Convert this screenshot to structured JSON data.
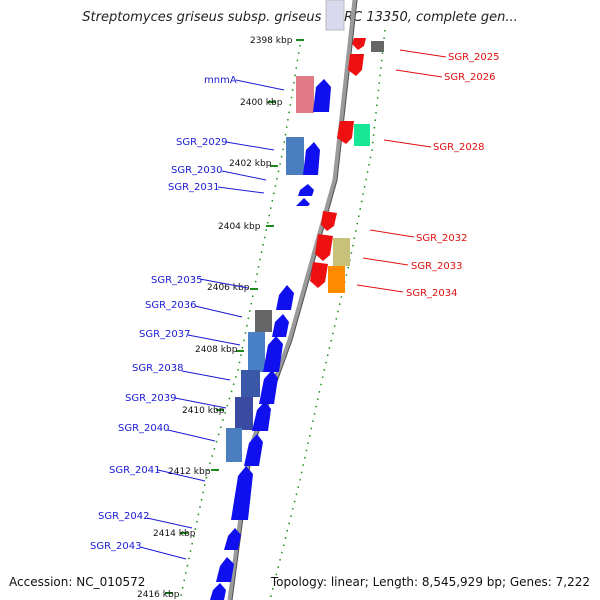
{
  "title": "Streptomyces griseus subsp. griseus NBRC 13350, complete gen...",
  "accession_text": "Accession: NC_010572",
  "topology_text": "Topology: linear; Length: 8,545,929 bp; Genes: 7,222",
  "scale": {
    "ticks": [
      {
        "label": "2398 kbp"
      },
      {
        "label": "2400 kbp"
      },
      {
        "label": "2402 kbp"
      },
      {
        "label": "2404 kbp"
      },
      {
        "label": "2406 kbp"
      },
      {
        "label": "2408 kbp"
      },
      {
        "label": "2410 kbp"
      },
      {
        "label": "2412 kbp"
      },
      {
        "label": "2414 kbp"
      },
      {
        "label": "2416 kbp"
      }
    ]
  },
  "genes": {
    "forward_labels": [
      {
        "name": "mnmA"
      },
      {
        "name": "SGR_2029"
      },
      {
        "name": "SGR_2030"
      },
      {
        "name": "SGR_2031"
      },
      {
        "name": "SGR_2035"
      },
      {
        "name": "SGR_2036"
      },
      {
        "name": "SGR_2037"
      },
      {
        "name": "SGR_2038"
      },
      {
        "name": "SGR_2039"
      },
      {
        "name": "SGR_2040"
      },
      {
        "name": "SGR_2041"
      },
      {
        "name": "SGR_2042"
      },
      {
        "name": "SGR_2043"
      }
    ],
    "reverse_labels": [
      {
        "name": "SGR_2025"
      },
      {
        "name": "SGR_2026"
      },
      {
        "name": "SGR_2028"
      },
      {
        "name": "SGR_2032"
      },
      {
        "name": "SGR_2033"
      },
      {
        "name": "SGR_2034"
      }
    ]
  },
  "colors": {
    "forward_strand": "#1010ee",
    "reverse_strand": "#ee1010",
    "forward_label": "#1a1ad6",
    "reverse_label": "#e01010",
    "backbone": "#8a8a8a",
    "ticks": "#1a8a1a"
  }
}
